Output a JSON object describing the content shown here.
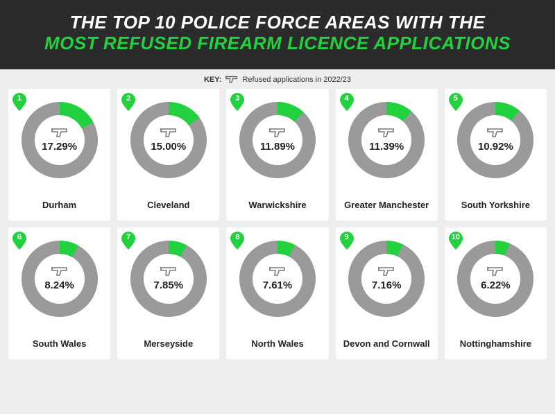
{
  "header": {
    "line1": "THE TOP 10 POLICE FORCE AREAS WITH THE",
    "line2": "MOST REFUSED FIREARM LICENCE APPLICATIONS",
    "bg_color": "#2b2b2b",
    "line1_color": "#ffffff",
    "line2_color": "#22d13e",
    "fontsize": 26,
    "font_weight": 800
  },
  "key": {
    "label": "KEY:",
    "text": "Refused applications in 2022/23",
    "icon": "gun-icon",
    "fontsize": 11,
    "color": "#333333"
  },
  "chart_style": {
    "type": "donut-grid",
    "page_bg": "#eeeeee",
    "card_bg": "#ffffff",
    "donut_track_color": "#9a9a9a",
    "donut_value_color": "#22d13e",
    "donut_outer_radius": 55,
    "donut_inner_radius": 36,
    "rank_pin_color": "#22d13e",
    "rank_text_color": "#ffffff",
    "pct_fontsize": 15,
    "name_fontsize": 13,
    "center_icon": "gun-icon",
    "center_icon_color": "#7a7a7a",
    "start_angle_deg": 0
  },
  "items": [
    {
      "rank": 1,
      "name": "Durham",
      "pct": 17.29,
      "pct_label": "17.29%"
    },
    {
      "rank": 2,
      "name": "Cleveland",
      "pct": 15.0,
      "pct_label": "15.00%"
    },
    {
      "rank": 3,
      "name": "Warwickshire",
      "pct": 11.89,
      "pct_label": "11.89%"
    },
    {
      "rank": 4,
      "name": "Greater Manchester",
      "pct": 11.39,
      "pct_label": "11.39%"
    },
    {
      "rank": 5,
      "name": "South Yorkshire",
      "pct": 10.92,
      "pct_label": "10.92%"
    },
    {
      "rank": 6,
      "name": "South Wales",
      "pct": 8.24,
      "pct_label": "8.24%"
    },
    {
      "rank": 7,
      "name": "Merseyside",
      "pct": 7.85,
      "pct_label": "7.85%"
    },
    {
      "rank": 8,
      "name": "North Wales",
      "pct": 7.61,
      "pct_label": "7.61%"
    },
    {
      "rank": 9,
      "name": "Devon and Cornwall",
      "pct": 7.16,
      "pct_label": "7.16%"
    },
    {
      "rank": 10,
      "name": "Nottinghamshire",
      "pct": 6.22,
      "pct_label": "6.22%"
    }
  ]
}
